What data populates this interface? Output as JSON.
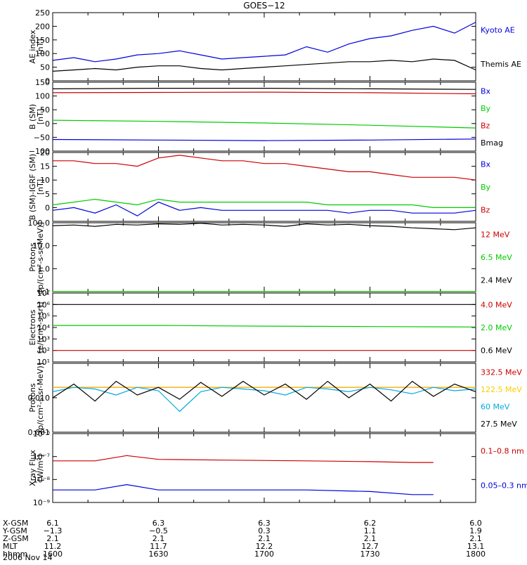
{
  "title": "GOES−12",
  "date_label": "2006 Nov 14",
  "colors": {
    "black": "#000000",
    "blue": "#0000dd",
    "red": "#cc0000",
    "green": "#00cc00",
    "yellow": "#ffcc00",
    "cyan": "#00aadd"
  },
  "ephemeris": {
    "rows": [
      {
        "label": "X-GSM",
        "values": [
          "6.1",
          "6.3",
          "6.3",
          "6.2",
          "6.0"
        ]
      },
      {
        "label": "Y-GSM",
        "values": [
          "−1.3",
          "−0.5",
          "0.3",
          "1.1",
          "1.9"
        ]
      },
      {
        "label": "Z-GSM",
        "values": [
          "2.1",
          "2.1",
          "2.1",
          "2.1",
          "2.1"
        ]
      },
      {
        "label": "MLT",
        "values": [
          "11.2",
          "11.7",
          "12.2",
          "12.7",
          "13.1"
        ]
      },
      {
        "label": "hhmm",
        "values": [
          "1600",
          "1630",
          "1700",
          "1730",
          "1800"
        ]
      }
    ]
  },
  "chart_data": [
    {
      "type": "line",
      "ylabel": "AE index\n[nT]",
      "yscale": "linear",
      "ylim": [
        0,
        250
      ],
      "yticks": [
        0,
        50,
        100,
        150,
        200,
        250
      ],
      "ytick_labels": [
        "0",
        "50",
        "100",
        "150",
        "200",
        "250"
      ],
      "x_hours": [
        16,
        18
      ],
      "series": [
        {
          "name": "Kyoto AE",
          "color": "blue",
          "x": [
            16.0,
            16.1,
            16.2,
            16.3,
            16.4,
            16.5,
            16.6,
            16.7,
            16.8,
            16.9,
            17.0,
            17.1,
            17.2,
            17.3,
            17.4,
            17.5,
            17.6,
            17.7,
            17.8,
            17.9,
            18.0
          ],
          "values": [
            75,
            85,
            70,
            80,
            95,
            100,
            110,
            95,
            80,
            85,
            90,
            95,
            125,
            105,
            135,
            155,
            165,
            185,
            200,
            175,
            215
          ]
        },
        {
          "name": "Themis AE",
          "color": "black",
          "x": [
            16.0,
            16.1,
            16.2,
            16.3,
            16.4,
            16.5,
            16.6,
            16.7,
            16.8,
            16.9,
            17.0,
            17.1,
            17.2,
            17.3,
            17.4,
            17.5,
            17.6,
            17.7,
            17.8,
            17.9,
            18.0
          ],
          "values": [
            35,
            40,
            45,
            40,
            50,
            55,
            55,
            45,
            40,
            45,
            50,
            55,
            60,
            65,
            70,
            70,
            75,
            70,
            80,
            75,
            40
          ]
        }
      ]
    },
    {
      "type": "line",
      "ylabel": "B (SM)\n[nT]",
      "yscale": "linear",
      "ylim": [
        -100,
        150
      ],
      "yticks": [
        -100,
        -50,
        0,
        50,
        100,
        150
      ],
      "ytick_labels": [
        "−100",
        "−50",
        "0",
        "50",
        "100",
        "150"
      ],
      "x_hours": [
        16,
        18
      ],
      "series": [
        {
          "name": "Bx",
          "color": "blue",
          "x": [
            16.0,
            16.5,
            17.0,
            17.5,
            18.0
          ],
          "values": [
            -58,
            -60,
            -62,
            -60,
            -56
          ]
        },
        {
          "name": "By",
          "color": "green",
          "x": [
            16.0,
            16.5,
            17.0,
            17.5,
            18.0
          ],
          "values": [
            12,
            8,
            2,
            -6,
            -16
          ]
        },
        {
          "name": "Bz",
          "color": "red",
          "x": [
            16.0,
            16.5,
            17.0,
            17.5,
            18.0
          ],
          "values": [
            112,
            113,
            114,
            112,
            108
          ]
        },
        {
          "name": "Bmag",
          "color": "black",
          "x": [
            16.0,
            16.5,
            17.0,
            17.5,
            18.0
          ],
          "values": [
            126,
            128,
            128,
            126,
            124
          ]
        }
      ]
    },
    {
      "type": "line",
      "ylabel": "B (SM)-IGRF (SM)\n[nT]",
      "yscale": "linear",
      "ylim": [
        -5,
        20
      ],
      "yticks": [
        0,
        5,
        10,
        15,
        20
      ],
      "ytick_labels": [
        "0",
        "5",
        "10",
        "15",
        "20"
      ],
      "x_hours": [
        16,
        18
      ],
      "series": [
        {
          "name": "Bx",
          "color": "blue",
          "x": [
            16.0,
            16.1,
            16.2,
            16.3,
            16.4,
            16.5,
            16.6,
            16.7,
            16.8,
            16.9,
            17.0,
            17.1,
            17.2,
            17.3,
            17.4,
            17.5,
            17.6,
            17.7,
            17.8,
            17.9,
            18.0
          ],
          "values": [
            -1,
            0,
            -2,
            1,
            -3,
            2,
            -1,
            0,
            -1,
            -1,
            -1,
            -1,
            -1,
            -1,
            -2,
            -1,
            -1,
            -2,
            -2,
            -2,
            -1
          ]
        },
        {
          "name": "By",
          "color": "green",
          "x": [
            16.0,
            16.1,
            16.2,
            16.3,
            16.4,
            16.5,
            16.6,
            16.7,
            16.8,
            16.9,
            17.0,
            17.1,
            17.2,
            17.3,
            17.4,
            17.5,
            17.6,
            17.7,
            17.8,
            17.9,
            18.0
          ],
          "values": [
            1,
            2,
            3,
            2,
            1,
            3,
            2,
            2,
            2,
            2,
            2,
            2,
            2,
            1,
            1,
            1,
            1,
            1,
            0,
            0,
            0
          ]
        },
        {
          "name": "Bz",
          "color": "red",
          "x": [
            16.0,
            16.1,
            16.2,
            16.3,
            16.4,
            16.5,
            16.6,
            16.7,
            16.8,
            16.9,
            17.0,
            17.1,
            17.2,
            17.3,
            17.4,
            17.5,
            17.6,
            17.7,
            17.8,
            17.9,
            18.0
          ],
          "values": [
            17,
            17,
            16,
            16,
            15,
            18,
            19,
            18,
            17,
            17,
            16,
            16,
            15,
            14,
            13,
            13,
            12,
            11,
            11,
            11,
            10
          ]
        }
      ]
    },
    {
      "type": "line",
      "ylabel": "Protons\n[p/(cm²-s-sr-MeV)]",
      "yscale": "log",
      "ylim": [
        0.1,
        100
      ],
      "yticks": [
        0.1,
        1,
        10,
        100
      ],
      "ytick_labels": [
        "0.1",
        "1.0",
        "10.0",
        "100.0"
      ],
      "x_hours": [
        16,
        18
      ],
      "series": [
        {
          "name": "12 MeV",
          "color": "red",
          "x": [
            16.0,
            16.5,
            17.0,
            17.5,
            18.0
          ],
          "values": [
            0.1,
            0.1,
            0.1,
            0.1,
            0.1
          ]
        },
        {
          "name": "6.5 MeV",
          "color": "green",
          "x": [
            16.0,
            16.5,
            17.0,
            17.5,
            18.0
          ],
          "values": [
            0.1,
            0.1,
            0.1,
            0.1,
            0.1
          ]
        },
        {
          "name": "2.4 MeV",
          "color": "black",
          "x": [
            16.0,
            16.1,
            16.2,
            16.3,
            16.4,
            16.5,
            16.6,
            16.7,
            16.8,
            16.9,
            17.0,
            17.1,
            17.2,
            17.3,
            17.4,
            17.5,
            17.6,
            17.7,
            17.8,
            17.9,
            18.0
          ],
          "values": [
            75,
            80,
            70,
            85,
            80,
            90,
            85,
            95,
            80,
            85,
            80,
            70,
            90,
            80,
            85,
            75,
            70,
            60,
            55,
            50,
            60
          ]
        }
      ]
    },
    {
      "type": "line",
      "ylabel": "Electrons\n[e/(cm²-s-sr)]",
      "yscale": "log",
      "ylim": [
        10,
        10000000
      ],
      "yticks": [
        10,
        100,
        1000,
        10000,
        100000,
        1000000,
        10000000
      ],
      "ytick_labels": [
        "10¹",
        "10²",
        "10³",
        "10⁴",
        "10⁵",
        "10⁶",
        "10⁷"
      ],
      "x_hours": [
        16,
        18
      ],
      "series": [
        {
          "name": "4.0 MeV",
          "color": "red",
          "x": [
            16.0,
            16.5,
            17.0,
            17.5,
            18.0
          ],
          "values": [
            100,
            100,
            100,
            100,
            100
          ]
        },
        {
          "name": "2.0 MeV",
          "color": "green",
          "x": [
            16.0,
            16.5,
            17.0,
            17.5,
            18.0
          ],
          "values": [
            15000,
            15000,
            13000,
            12000,
            11000
          ]
        },
        {
          "name": "0.6 MeV",
          "color": "black",
          "x": [
            16.0,
            16.5,
            17.0,
            17.5,
            18.0
          ],
          "values": [
            1000000,
            1000000,
            1000000,
            1000000,
            1000000
          ]
        }
      ]
    },
    {
      "type": "line",
      "ylabel": "Protons\n[p/(cm²-s-sr-MeV)]",
      "yscale": "log",
      "ylim": [
        0.001,
        0.1
      ],
      "yticks": [
        0.001,
        0.01
      ],
      "ytick_labels": [
        "0.001",
        "0.010"
      ],
      "x_hours": [
        16,
        18
      ],
      "series": [
        {
          "name": "332.5 MeV",
          "color": "red",
          "x": [
            16.0,
            16.5,
            17.0,
            17.5,
            18.0
          ],
          "values": [
            0.02,
            0.02,
            0.02,
            0.02,
            0.02
          ]
        },
        {
          "name": "122.5 MeV",
          "color": "yellow",
          "x": [
            16.0,
            16.5,
            17.0,
            17.5,
            18.0
          ],
          "values": [
            0.02,
            0.02,
            0.02,
            0.02,
            0.02
          ]
        },
        {
          "name": "60 MeV",
          "color": "cyan",
          "x": [
            16.0,
            16.1,
            16.2,
            16.3,
            16.4,
            16.5,
            16.6,
            16.7,
            16.8,
            16.9,
            17.0,
            17.1,
            17.2,
            17.3,
            17.4,
            17.5,
            17.6,
            17.7,
            17.8,
            17.9,
            18.0
          ],
          "values": [
            0.015,
            0.02,
            0.018,
            0.012,
            0.02,
            0.016,
            0.004,
            0.015,
            0.02,
            0.018,
            0.016,
            0.012,
            0.02,
            0.018,
            0.015,
            0.02,
            0.017,
            0.013,
            0.02,
            0.016,
            0.018
          ]
        },
        {
          "name": "27.5 MeV",
          "color": "black",
          "x": [
            16.0,
            16.1,
            16.2,
            16.3,
            16.4,
            16.5,
            16.6,
            16.7,
            16.8,
            16.9,
            17.0,
            17.1,
            17.2,
            17.3,
            17.4,
            17.5,
            17.6,
            17.7,
            17.8,
            17.9,
            18.0
          ],
          "values": [
            0.01,
            0.025,
            0.008,
            0.03,
            0.012,
            0.02,
            0.009,
            0.028,
            0.011,
            0.03,
            0.012,
            0.025,
            0.009,
            0.03,
            0.01,
            0.025,
            0.008,
            0.03,
            0.011,
            0.025,
            0.015
          ]
        }
      ]
    },
    {
      "type": "line",
      "ylabel": "Xray Flux\n[W/m²]",
      "yscale": "log",
      "ylim": [
        1e-09,
        1e-06
      ],
      "yticks": [
        1e-09,
        1e-08,
        1e-07,
        1e-06
      ],
      "ytick_labels": [
        "10⁻⁹",
        "10⁻⁸",
        "10⁻⁷",
        "10⁻⁶"
      ],
      "x_hours": [
        16,
        18
      ],
      "series": [
        {
          "name": "0.1–0.8 nm",
          "color": "red",
          "x": [
            16.0,
            16.2,
            16.35,
            16.5,
            16.8,
            17.2,
            17.5,
            17.7,
            17.8
          ],
          "values": [
            6.5e-08,
            6.5e-08,
            1.1e-07,
            7.5e-08,
            7e-08,
            6.5e-08,
            6e-08,
            5.5e-08,
            5.5e-08
          ]
        },
        {
          "name": "0.05–0.3 nm",
          "color": "blue",
          "x": [
            16.0,
            16.2,
            16.35,
            16.5,
            16.8,
            17.2,
            17.5,
            17.7,
            17.8
          ],
          "values": [
            3.5e-09,
            3.5e-09,
            6e-09,
            3.5e-09,
            3.5e-09,
            3.5e-09,
            3e-09,
            2.2e-09,
            2.2e-09
          ]
        }
      ]
    }
  ]
}
